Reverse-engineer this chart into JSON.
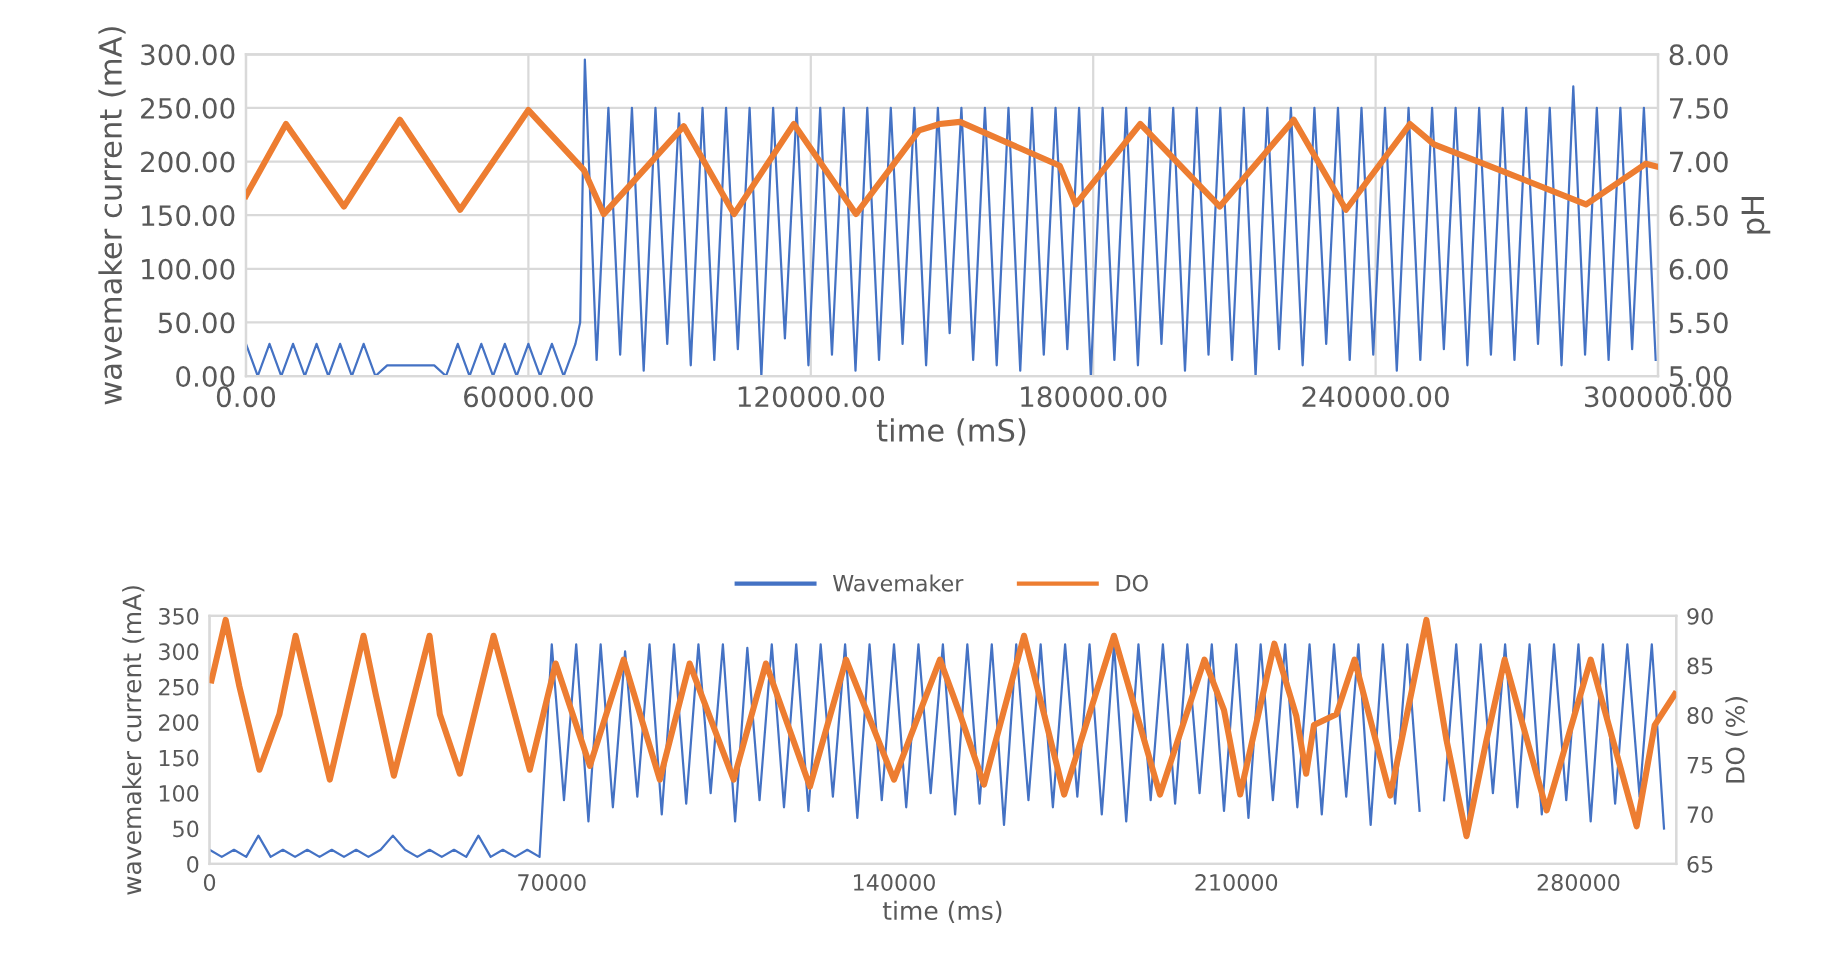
{
  "chart_data": [
    {
      "type": "line",
      "xlabel": "time (mS)",
      "ylabel": "wavemaker current (mA)",
      "y2label": "pH",
      "grid": true,
      "xlim": [
        0,
        300000
      ],
      "xticks": [
        {
          "value": 0,
          "label": "0.00"
        },
        {
          "value": 60000,
          "label": "60000.00"
        },
        {
          "value": 120000,
          "label": "120000.00"
        },
        {
          "value": 180000,
          "label": "180000.00"
        },
        {
          "value": 240000,
          "label": "240000.00"
        },
        {
          "value": 300000,
          "label": "300000.00"
        }
      ],
      "ylim": [
        0,
        300
      ],
      "yticks": [
        {
          "value": 0,
          "label": "0.00"
        },
        {
          "value": 50,
          "label": "50.00"
        },
        {
          "value": 100,
          "label": "100.00"
        },
        {
          "value": 150,
          "label": "150.00"
        },
        {
          "value": 200,
          "label": "200.00"
        },
        {
          "value": 250,
          "label": "250.00"
        },
        {
          "value": 300,
          "label": "300.00"
        }
      ],
      "y2lim": [
        5,
        8
      ],
      "y2ticks": [
        {
          "value": 5,
          "label": "5.00"
        },
        {
          "value": 5.5,
          "label": "5.50"
        },
        {
          "value": 6,
          "label": "6.00"
        },
        {
          "value": 6.5,
          "label": "6.50"
        },
        {
          "value": 7,
          "label": "7.00"
        },
        {
          "value": 7.5,
          "label": "7.50"
        },
        {
          "value": 8,
          "label": "8.00"
        }
      ],
      "series": [
        {
          "color": "#4472c4",
          "x": [
            0,
            2500,
            5000,
            7500,
            10000,
            12500,
            15000,
            17500,
            20000,
            22500,
            25000,
            27500,
            30000,
            32500,
            35000,
            37500,
            40000,
            42500,
            45000,
            47500,
            50000,
            52500,
            55000,
            57500,
            60000,
            62500,
            65000,
            67500,
            70000,
            71000,
            72000,
            74500,
            77000,
            79500,
            82000,
            84500,
            87000,
            89500,
            92000,
            94500,
            97000,
            99500,
            102000,
            104500,
            107000,
            109500,
            112000,
            114500,
            117000,
            119500,
            122000,
            124500,
            127000,
            129500,
            132000,
            134500,
            137000,
            139500,
            142000,
            144500,
            147000,
            149500,
            152000,
            154500,
            157000,
            159500,
            162000,
            164500,
            167000,
            169500,
            172000,
            174500,
            177000,
            179500,
            182000,
            184500,
            187000,
            189500,
            192000,
            194500,
            197000,
            199500,
            202000,
            204500,
            207000,
            209500,
            212000,
            214500,
            217000,
            219500,
            222000,
            224500,
            227000,
            229500,
            232000,
            234500,
            237000,
            239500,
            242000,
            244500,
            247000,
            249500,
            252000,
            254500,
            257000,
            259500,
            262000,
            264500,
            267000,
            269500,
            272000,
            274500,
            277000,
            279500,
            282000,
            284500,
            287000,
            289500,
            292000,
            294500,
            297000,
            299500
          ],
          "values": [
            30,
            0,
            30,
            0,
            30,
            0,
            30,
            0,
            30,
            0,
            30,
            0,
            10,
            10,
            10,
            10,
            10,
            0,
            30,
            0,
            30,
            0,
            30,
            0,
            30,
            0,
            30,
            0,
            30,
            50,
            295,
            15,
            250,
            20,
            250,
            5,
            250,
            30,
            245,
            10,
            250,
            15,
            250,
            25,
            250,
            0,
            250,
            35,
            250,
            10,
            250,
            20,
            250,
            5,
            250,
            15,
            250,
            30,
            250,
            10,
            250,
            40,
            250,
            15,
            250,
            10,
            250,
            5,
            250,
            20,
            250,
            25,
            250,
            0,
            250,
            15,
            250,
            10,
            250,
            30,
            250,
            5,
            250,
            20,
            250,
            15,
            250,
            0,
            250,
            25,
            250,
            10,
            250,
            30,
            250,
            15,
            250,
            20,
            250,
            5,
            250,
            15,
            250,
            25,
            250,
            10,
            250,
            20,
            250,
            15,
            250,
            30,
            250,
            10,
            270,
            20,
            250,
            15,
            250,
            25,
            250,
            15
          ]
        },
        {
          "color": "#ed7d31",
          "axis": "y2",
          "x": [
            0,
            8500,
            20800,
            32700,
            45500,
            60000,
            71800,
            76000,
            93000,
            103700,
            116400,
            129600,
            143000,
            147400,
            151700,
            172900,
            176300,
            190000,
            206900,
            222600,
            233700,
            247300,
            252400,
            266400,
            284700,
            297400,
            300000
          ],
          "values": [
            6.68,
            7.35,
            6.58,
            7.39,
            6.55,
            7.48,
            6.92,
            6.51,
            7.33,
            6.51,
            7.35,
            6.51,
            7.29,
            7.35,
            7.37,
            6.96,
            6.6,
            7.35,
            6.58,
            7.39,
            6.55,
            7.35,
            7.16,
            6.92,
            6.6,
            6.98,
            6.95
          ]
        }
      ]
    },
    {
      "type": "line",
      "xlabel": "time (ms)",
      "ylabel": "wavemaker current (mA)",
      "y2label": "DO (%)",
      "legend": "top",
      "xlim": [
        0,
        300000
      ],
      "xticks": [
        0,
        70000,
        140000,
        210000,
        280000
      ],
      "ylim": [
        0,
        350
      ],
      "yticks": [
        0,
        50,
        100,
        150,
        200,
        250,
        300,
        350
      ],
      "y2lim": [
        65,
        90
      ],
      "y2ticks": [
        65,
        70,
        75,
        80,
        85,
        90
      ],
      "series": [
        {
          "name": "Wavemaker",
          "color": "#4472c4",
          "x": [
            0,
            2500,
            5000,
            7500,
            10000,
            12500,
            15000,
            17500,
            20000,
            22500,
            25000,
            27500,
            30000,
            32500,
            35000,
            37500,
            40000,
            42500,
            45000,
            47500,
            50000,
            52500,
            55000,
            57500,
            60000,
            62500,
            65000,
            67500,
            70000,
            72500,
            75000,
            77500,
            80000,
            82500,
            85000,
            87500,
            90000,
            92500,
            95000,
            97500,
            100000,
            102500,
            105000,
            107500,
            110000,
            112500,
            115000,
            117500,
            120000,
            122500,
            125000,
            127500,
            130000,
            132500,
            135000,
            137500,
            140000,
            142500,
            145000,
            147500,
            150000,
            152500,
            155000,
            157500,
            160000,
            162500,
            165000,
            167500,
            170000,
            172500,
            175000,
            177500,
            180000,
            182500,
            185000,
            187500,
            190000,
            192500,
            195000,
            197500,
            200000,
            202500,
            205000,
            207500,
            210000,
            212500,
            215000,
            217500,
            220000,
            222500,
            225000,
            227500,
            230000,
            232500,
            235000,
            237500,
            240000,
            242500,
            245000,
            247500,
            250000,
            252500,
            255000,
            257500,
            260000,
            262500,
            265000,
            267500,
            270000,
            272500,
            275000,
            277500,
            280000,
            282500,
            285000,
            287500,
            290000,
            292500,
            295000,
            297500
          ],
          "values": [
            20,
            10,
            20,
            10,
            40,
            10,
            20,
            10,
            20,
            10,
            20,
            10,
            20,
            10,
            20,
            40,
            20,
            10,
            20,
            10,
            20,
            10,
            40,
            10,
            20,
            10,
            20,
            10,
            310,
            90,
            310,
            60,
            310,
            80,
            300,
            95,
            310,
            70,
            310,
            85,
            310,
            100,
            310,
            60,
            305,
            90,
            310,
            80,
            310,
            75,
            310,
            95,
            310,
            65,
            310,
            90,
            310,
            80,
            310,
            100,
            310,
            70,
            310,
            85,
            310,
            55,
            310,
            90,
            310,
            80,
            310,
            95,
            310,
            70,
            310,
            60,
            310,
            90,
            310,
            85,
            310,
            100,
            310,
            75,
            310,
            65,
            310,
            90,
            310,
            80,
            310,
            70,
            310,
            95,
            310,
            55,
            310,
            85,
            310,
            75,
            null,
            90,
            310,
            65,
            310,
            100,
            310,
            80,
            310,
            70,
            310,
            90,
            310,
            60,
            310,
            85,
            310,
            95,
            310,
            50
          ]
        },
        {
          "name": "DO",
          "color": "#ed7d31",
          "axis": "y2",
          "x": [
            400,
            3300,
            6100,
            10200,
            14300,
            17600,
            24600,
            31500,
            34000,
            37700,
            45000,
            47100,
            51200,
            58100,
            65500,
            70800,
            77800,
            84700,
            92100,
            98200,
            107200,
            113800,
            122800,
            130200,
            140000,
            149400,
            153500,
            158400,
            166600,
            170700,
            174800,
            185000,
            194400,
            203500,
            207500,
            210800,
            217800,
            222300,
            224300,
            225900,
            230500,
            234200,
            241500,
            248900,
            253000,
            257100,
            261200,
            264900,
            273500,
            282500,
            291900,
            295600,
            299700
          ],
          "values": [
            83.5,
            89.6,
            82.9,
            74.5,
            80.1,
            88,
            73.5,
            88,
            82.1,
            73.9,
            88,
            80.1,
            74.1,
            88,
            74.5,
            85.2,
            74.9,
            85.6,
            73.5,
            85.2,
            73.5,
            85.2,
            72.8,
            85.6,
            73.5,
            85.6,
            80.1,
            73,
            88,
            80.1,
            72,
            88,
            72,
            85.6,
            80.5,
            72,
            87.2,
            79.9,
            74.1,
            79,
            80.1,
            85.6,
            71.9,
            89.6,
            77.5,
            67.8,
            77.5,
            85.6,
            70.4,
            85.6,
            68.8,
            79,
            82.1
          ]
        }
      ]
    }
  ]
}
